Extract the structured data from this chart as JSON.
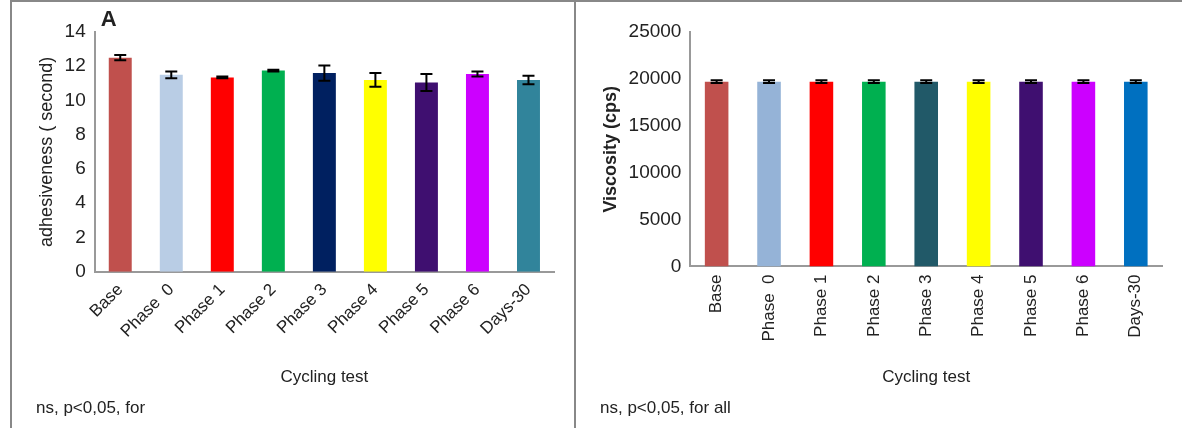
{
  "chart_data": [
    {
      "type": "bar",
      "ylabel": "adhesiveness ( second)",
      "xlabel": "Cycling test",
      "categories": [
        "Base",
        "Phase  0",
        "Phase 1",
        "Phase 2",
        "Phase 3",
        "Phase 4",
        "Phase 5",
        "Phase 6",
        "Days-30"
      ],
      "values": [
        12.5,
        11.5,
        11.35,
        11.75,
        11.6,
        11.2,
        11.05,
        11.55,
        11.2
      ],
      "errors": [
        0.15,
        0.2,
        0.05,
        0.05,
        0.45,
        0.4,
        0.5,
        0.15,
        0.25
      ],
      "colors": [
        "#c0504d",
        "#b9cde5",
        "#ff0000",
        "#00b050",
        "#002060",
        "#ffff00",
        "#3f0f70",
        "#cc00ff",
        "#31849b"
      ],
      "ylim": [
        0,
        14
      ],
      "yticks": [
        0,
        2,
        4,
        6,
        8,
        10,
        12,
        14
      ],
      "annotations": [
        "A",
        "ns, p<0,05, for"
      ]
    },
    {
      "type": "bar",
      "ylabel": "Viscosity (cps)",
      "xlabel": "Cycling test",
      "categories": [
        "Base",
        "Phase  0",
        "Phase 1",
        "Phase 2",
        "Phase 3",
        "Phase 4",
        "Phase 5",
        "Phase 6",
        "Days-30"
      ],
      "values": [
        19700,
        19700,
        19700,
        19700,
        19700,
        19700,
        19700,
        19700,
        19700
      ],
      "errors": [
        150,
        150,
        150,
        150,
        150,
        150,
        150,
        150,
        150
      ],
      "colors": [
        "#c0504d",
        "#95b3d7",
        "#ff0000",
        "#00b050",
        "#215968",
        "#ffff00",
        "#3f0f70",
        "#cc00ff",
        "#0070c0"
      ],
      "ylim": [
        0,
        25000
      ],
      "yticks": [
        0,
        5000,
        10000,
        15000,
        20000,
        25000
      ],
      "annotations": [
        "ns, p<0,05, for all"
      ]
    }
  ]
}
